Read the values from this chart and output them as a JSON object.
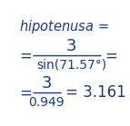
{
  "line1_text": "$\\it{hipotenusa}$ =",
  "line2_left": "=",
  "line2_frac_num": "3",
  "line2_frac_den": "sin(71.57°)",
  "line2_right": "=",
  "line3_left": "=",
  "line3_frac_num": "3",
  "line3_frac_den": "0.949",
  "line3_right": "= 3.161",
  "text_color": "#1a3a8a",
  "bg_color": "#ffffff",
  "figsize": [
    1.43,
    1.39
  ],
  "dpi": 100
}
